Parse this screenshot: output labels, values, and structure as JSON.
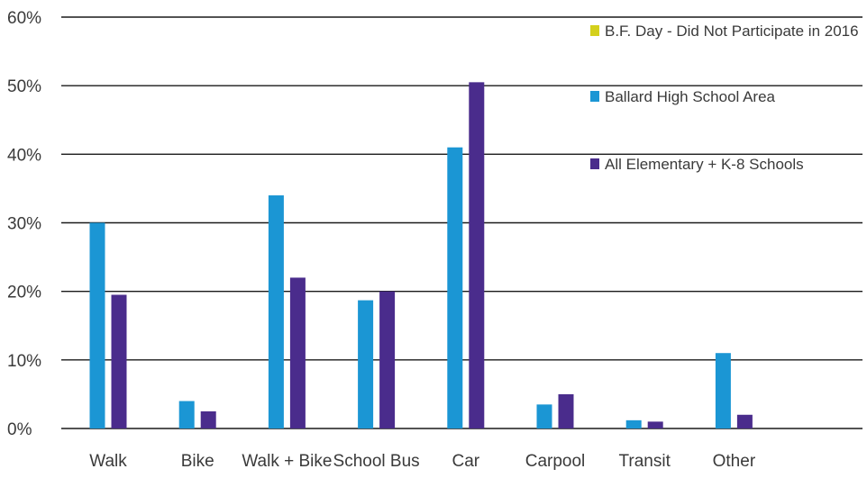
{
  "chart_data": {
    "type": "bar",
    "categories": [
      "Walk",
      "Bike",
      "Walk + Bike",
      "School Bus",
      "Car",
      "Carpool",
      "Transit",
      "Other"
    ],
    "series": [
      {
        "name": "B.F. Day - Did Not Participate  in 2016",
        "color": "#d4d01c",
        "values": [
          null,
          null,
          null,
          null,
          null,
          null,
          null,
          null
        ]
      },
      {
        "name": "Ballard High School Area",
        "color": "#1b96d4",
        "values": [
          30,
          4,
          34,
          18.7,
          41,
          3.5,
          1.2,
          11
        ]
      },
      {
        "name": "All Elementary + K-8 Schools",
        "color": "#4a2c8c",
        "values": [
          19.5,
          2.5,
          22,
          20,
          50.5,
          5,
          1,
          2
        ]
      }
    ],
    "y_ticks": [
      "0%",
      "10%",
      "20%",
      "30%",
      "40%",
      "50%",
      "60%"
    ],
    "ylim": [
      0,
      60
    ],
    "grid": true,
    "legend_position": "top-right"
  }
}
